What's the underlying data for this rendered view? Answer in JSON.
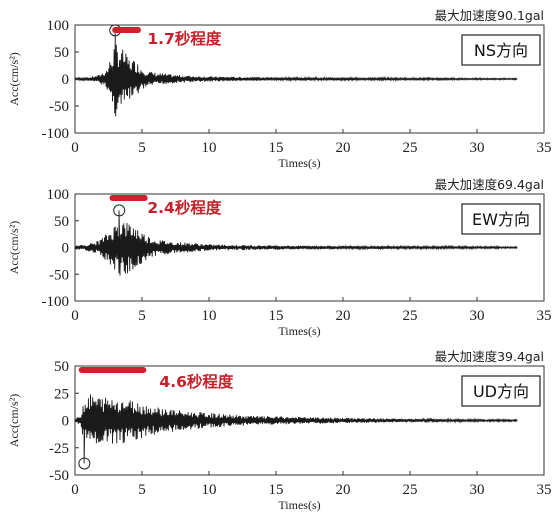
{
  "chart_data": [
    {
      "type": "line",
      "panel": "ns",
      "max_accel_label": "最大加速度90.1gal",
      "duration_label": "1.7秒程度",
      "direction_label": "NS方向",
      "xlabel": "Times(s)",
      "ylabel": "Acc(cm/s²)",
      "xlim": [
        0,
        35
      ],
      "ylim": [
        -100,
        100
      ],
      "xticks": [
        "0",
        "5",
        "10",
        "15",
        "20",
        "25",
        "30",
        "35"
      ],
      "yticks": [
        "100",
        "50",
        "0",
        "-50",
        "-100"
      ],
      "peak": {
        "x": 3.0,
        "y": 90.1
      },
      "duration_bar": {
        "x_start": 3.0,
        "x_end": 4.7
      },
      "envelope": {
        "t": [
          0,
          1,
          1.8,
          2.4,
          2.8,
          3.0,
          3.2,
          3.6,
          4.0,
          4.5,
          5.0,
          5.5,
          6.0,
          7.0,
          8.0,
          9.0,
          10.0,
          12.0,
          15.0,
          20.0,
          25.0,
          30.0,
          33.0
        ],
        "amplitude": [
          2,
          3,
          8,
          20,
          50,
          75,
          62,
          55,
          40,
          35,
          22,
          15,
          12,
          9,
          7,
          6,
          5,
          4,
          3,
          2.5,
          2,
          1.5,
          1.2
        ]
      }
    },
    {
      "type": "line",
      "panel": "ew",
      "max_accel_label": "最大加速度69.4gal",
      "duration_label": "2.4秒程度",
      "direction_label": "EW方向",
      "xlabel": "Times(s)",
      "ylabel": "Acc(cm/s²)",
      "xlim": [
        0,
        35
      ],
      "ylim": [
        -100,
        100
      ],
      "xticks": [
        "0",
        "5",
        "10",
        "15",
        "20",
        "25",
        "30",
        "35"
      ],
      "yticks": [
        "100",
        "50",
        "0",
        "-50",
        "-100"
      ],
      "peak": {
        "x": 3.3,
        "y": 69.4
      },
      "duration_bar": {
        "x_start": 2.8,
        "x_end": 5.2
      },
      "envelope": {
        "t": [
          0,
          0.8,
          1.5,
          2.0,
          2.5,
          3.0,
          3.3,
          3.8,
          4.5,
          5.0,
          5.5,
          6.0,
          7.0,
          8.0,
          9.0,
          10.0,
          12.0,
          15.0,
          20.0,
          25.0,
          30.0,
          33.0
        ],
        "amplitude": [
          3,
          6,
          10,
          18,
          30,
          45,
          55,
          50,
          42,
          30,
          22,
          16,
          12,
          10,
          8,
          6,
          5,
          4,
          3,
          2.5,
          2,
          1.5
        ]
      }
    },
    {
      "type": "line",
      "panel": "ud",
      "max_accel_label": "最大加速度39.4gal",
      "duration_label": "4.6秒程度",
      "direction_label": "UD方向",
      "xlabel": "Times(s)",
      "ylabel": "Acc(cm/s²)",
      "xlim": [
        0,
        35
      ],
      "ylim": [
        -50,
        50
      ],
      "xticks": [
        "0",
        "5",
        "10",
        "15",
        "20",
        "25",
        "30",
        "35"
      ],
      "yticks": [
        "50",
        "25",
        "0",
        "-25",
        "-50"
      ],
      "peak": {
        "x": 0.7,
        "y": -39.4
      },
      "duration_bar": {
        "x_start": 0.5,
        "x_end": 5.1
      },
      "envelope": {
        "t": [
          0,
          0.4,
          0.7,
          1.0,
          1.5,
          2.0,
          3.0,
          4.0,
          5.0,
          6.0,
          7.0,
          8.0,
          9.0,
          10.0,
          11.0,
          12.0,
          14.0,
          16.0,
          18.0,
          20.0,
          25.0,
          30.0,
          33.0
        ],
        "amplitude": [
          1,
          5,
          22,
          25,
          24,
          22,
          22,
          20,
          16,
          13,
          11,
          9,
          8,
          7,
          6,
          5,
          4,
          3.5,
          3,
          2.5,
          1.5,
          1,
          0.8
        ]
      }
    }
  ]
}
